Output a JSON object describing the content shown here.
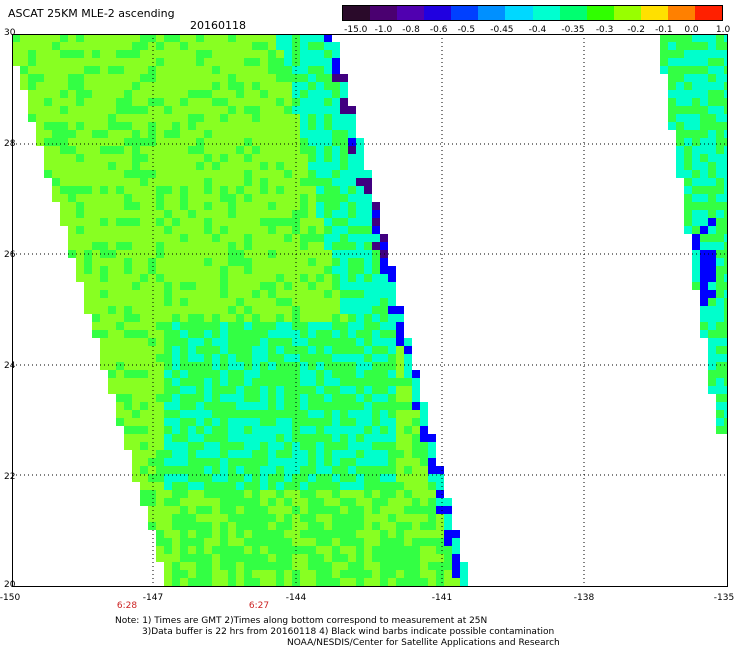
{
  "header": {
    "title": "ASCAT 25KM MLE-2 ascending",
    "date": "20160118"
  },
  "colorbar": {
    "labels": [
      "-15.0",
      "-1.0",
      "-0.8",
      "-0.6",
      "-0.5",
      "-0.45",
      "-0.4",
      "-0.35",
      "-0.3",
      "-0.2",
      "-0.1",
      "0.0",
      "1.0"
    ],
    "colors": [
      "#2a0a2a",
      "#4a0070",
      "#5000b0",
      "#2000e0",
      "#0040ff",
      "#0090ff",
      "#00d8ff",
      "#00ffd0",
      "#00ff70",
      "#30ff00",
      "#98ff00",
      "#ffe000",
      "#ff8000",
      "#ff2000"
    ]
  },
  "map": {
    "lat_labels": [
      "30",
      "28",
      "26",
      "24",
      "22",
      "20"
    ],
    "lon_labels": [
      "-150",
      "-147",
      "-144",
      "-141",
      "-138",
      "-135"
    ],
    "time_labels": [
      "6:28",
      "6:27"
    ],
    "colors": {
      "lime": "#88ff22",
      "green": "#33ff44",
      "aqua": "#00ffcc",
      "blue": "#0000ff",
      "purple": "#400080"
    }
  },
  "notes": {
    "line1": "Note: 1) Times are GMT 2)Times along bottom correspond to measurement at 25N",
    "line2": "3)Data buffer is 22 hrs from 20160118 4) Black wind barbs indicate possible contamination",
    "line3": "NOAA/NESDIS/Center for Satellite Applications and Research"
  }
}
